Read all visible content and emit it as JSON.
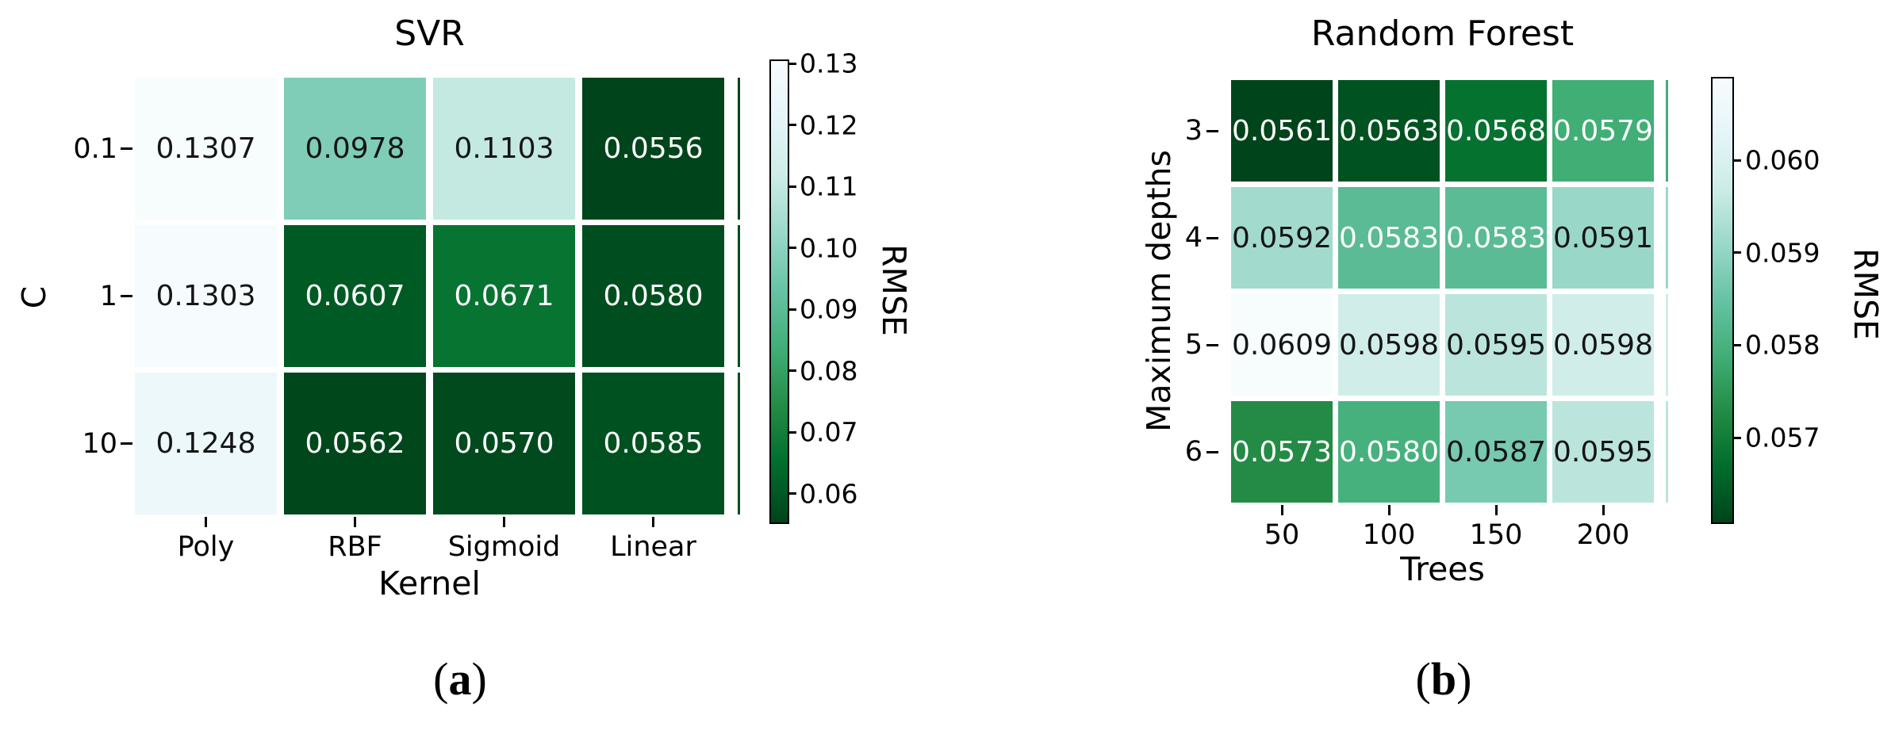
{
  "page": {
    "background": "#ffffff"
  },
  "colors": {
    "colormap_name": "BuGn_r",
    "colormap_anchors": [
      "#f7fcfd",
      "#e5f5f9",
      "#ccece6",
      "#99d8c9",
      "#66c2a4",
      "#41ae76",
      "#238b45",
      "#006d2c",
      "#00441b"
    ],
    "annotation_dark_text": "#151515",
    "annotation_light_text": "#ffffff",
    "tick_color": "#000000"
  },
  "chart_data": [
    {
      "type": "heatmap",
      "title": "SVR",
      "xlabel": "Kernel",
      "ylabel": "C",
      "x_categories": [
        "Poly",
        "RBF",
        "Sigmoid",
        "Linear"
      ],
      "y_categories": [
        "0.1",
        "1",
        "10"
      ],
      "values": [
        [
          0.1307,
          0.0978,
          0.1103,
          0.0556
        ],
        [
          0.1303,
          0.0607,
          0.0671,
          0.058
        ],
        [
          0.1248,
          0.0562,
          0.057,
          0.0585
        ]
      ],
      "cell_labels": [
        [
          "0.1307",
          "0.0978",
          "0.1103",
          "0.0556"
        ],
        [
          "0.1303",
          "0.0607",
          "0.0671",
          "0.0580"
        ],
        [
          "0.1248",
          "0.0562",
          "0.0570",
          "0.0585"
        ]
      ],
      "vmin": 0.0556,
      "vmax": 0.1307,
      "colorbar": {
        "label": "RMSE",
        "position": "right",
        "tick_values": [
          0.13,
          0.12,
          0.11,
          0.1,
          0.09,
          0.08,
          0.07,
          0.06
        ],
        "tick_labels": [
          "0.13",
          "0.12",
          "0.11",
          "0.10",
          "0.09",
          "0.08",
          "0.07",
          "0.06"
        ]
      },
      "panel_caption": {
        "open": "(",
        "letter": "a",
        "close": ")"
      }
    },
    {
      "type": "heatmap",
      "title": "Random Forest",
      "xlabel": "Trees",
      "ylabel": "Maximum depths",
      "x_categories": [
        "50",
        "100",
        "150",
        "200"
      ],
      "y_categories": [
        "3",
        "4",
        "5",
        "6"
      ],
      "values": [
        [
          0.0561,
          0.0563,
          0.0568,
          0.0579
        ],
        [
          0.0592,
          0.0583,
          0.0583,
          0.0591
        ],
        [
          0.0609,
          0.0598,
          0.0595,
          0.0598
        ],
        [
          0.0573,
          0.058,
          0.0587,
          0.0595
        ]
      ],
      "cell_labels": [
        [
          "0.0561",
          "0.0563",
          "0.0568",
          "0.0579"
        ],
        [
          "0.0592",
          "0.0583",
          "0.0583",
          "0.0591"
        ],
        [
          "0.0609",
          "0.0598",
          "0.0595",
          "0.0598"
        ],
        [
          "0.0573",
          "0.0580",
          "0.0587",
          "0.0595"
        ]
      ],
      "vmin": 0.0561,
      "vmax": 0.0609,
      "colorbar": {
        "label": "RMSE",
        "position": "right",
        "tick_values": [
          0.06,
          0.059,
          0.058,
          0.057
        ],
        "tick_labels": [
          "0.060",
          "0.059",
          "0.058",
          "0.057"
        ]
      },
      "panel_caption": {
        "open": "(",
        "letter": "b",
        "close": ")"
      }
    }
  ]
}
